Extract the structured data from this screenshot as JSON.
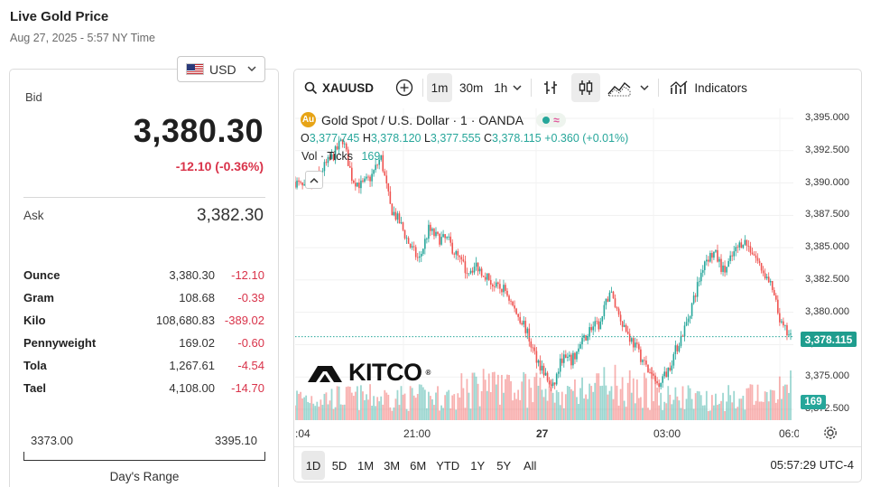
{
  "page": {
    "title": "Live Gold Price",
    "timestamp": "Aug 27, 2025 - 5:57 NY Time"
  },
  "currency": {
    "selected": "USD"
  },
  "quote": {
    "bid_label": "Bid",
    "bid": "3,380.30",
    "change": "-12.10 (-0.36%)",
    "ask_label": "Ask",
    "ask": "3,382.30"
  },
  "units": [
    {
      "name": "Ounce",
      "price": "3,380.30",
      "change": "-12.10"
    },
    {
      "name": "Gram",
      "price": "108.68",
      "change": "-0.39"
    },
    {
      "name": "Kilo",
      "price": "108,680.83",
      "change": "-389.02"
    },
    {
      "name": "Pennyweight",
      "price": "169.02",
      "change": "-0.60"
    },
    {
      "name": "Tola",
      "price": "1,267.61",
      "change": "-4.54"
    },
    {
      "name": "Tael",
      "price": "4,108.00",
      "change": "-14.70"
    }
  ],
  "range": {
    "low": "3373.00",
    "high": "3395.10",
    "label": "Day's Range"
  },
  "toolbar": {
    "symbol": "XAUUSD",
    "intervals": [
      "1m",
      "30m",
      "1h"
    ],
    "indicators": "Indicators"
  },
  "legend": {
    "title": "Gold Spot / U.S. Dollar · 1 · OANDA",
    "o": "3,377.745",
    "h": "3,378.120",
    "l": "3,377.555",
    "c": "3,378.115",
    "chg": "+0.360 (+0.01%)",
    "vol_label": "Vol · Ticks",
    "vol_value": "169"
  },
  "brand": {
    "name": "KITCO",
    "reg": "®"
  },
  "bottom": {
    "ranges": [
      "1D",
      "5D",
      "1M",
      "3M",
      "6M",
      "YTD",
      "1Y",
      "5Y",
      "All"
    ],
    "clock": "05:57:29 UTC-4"
  },
  "colors": {
    "up": "#26a69a",
    "down": "#ef5350",
    "accent": "#1f9d8e"
  },
  "chart_data": {
    "type": "candlestick",
    "symbol": "XAUUSD",
    "ylim": [
      3371.5,
      3396.0
    ],
    "yticks": [
      "3,395.000",
      "3,392.500",
      "3,390.000",
      "3,387.500",
      "3,385.000",
      "3,382.500",
      "3,380.000",
      "3,377.500",
      "3,375.000",
      "3,372.500"
    ],
    "ytick_values": [
      3395.0,
      3392.5,
      3390.0,
      3387.5,
      3385.0,
      3382.5,
      3380.0,
      3377.5,
      3375.0,
      3372.5
    ],
    "xticks": [
      ":04",
      "21:00",
      "27",
      "03:00",
      "06:0"
    ],
    "last_price": "3,378.115",
    "last_price_value": 3378.115,
    "volume_last": "169",
    "price_path": [
      3390.1,
      3389.5,
      3390.2,
      3391.2,
      3392.1,
      3393.4,
      3390.3,
      3389.8,
      3390.5,
      3392.0,
      3388.1,
      3386.9,
      3385.2,
      3384.0,
      3386.4,
      3385.7,
      3385.6,
      3384.3,
      3383.2,
      3383.6,
      3382.9,
      3381.9,
      3381.8,
      3380.2,
      3379.1,
      3377.0,
      3375.5,
      3374.0,
      3376.5,
      3376.2,
      3377.5,
      3378.8,
      3379.0,
      3381.7,
      3379.8,
      3378.2,
      3377.0,
      3375.5,
      3374.5,
      3375.3,
      3377.2,
      3379.0,
      3381.5,
      3384.1,
      3384.6,
      3383.1,
      3384.5,
      3385.6,
      3384.7,
      3383.3,
      3381.9,
      3379.0,
      3378.0
    ]
  }
}
